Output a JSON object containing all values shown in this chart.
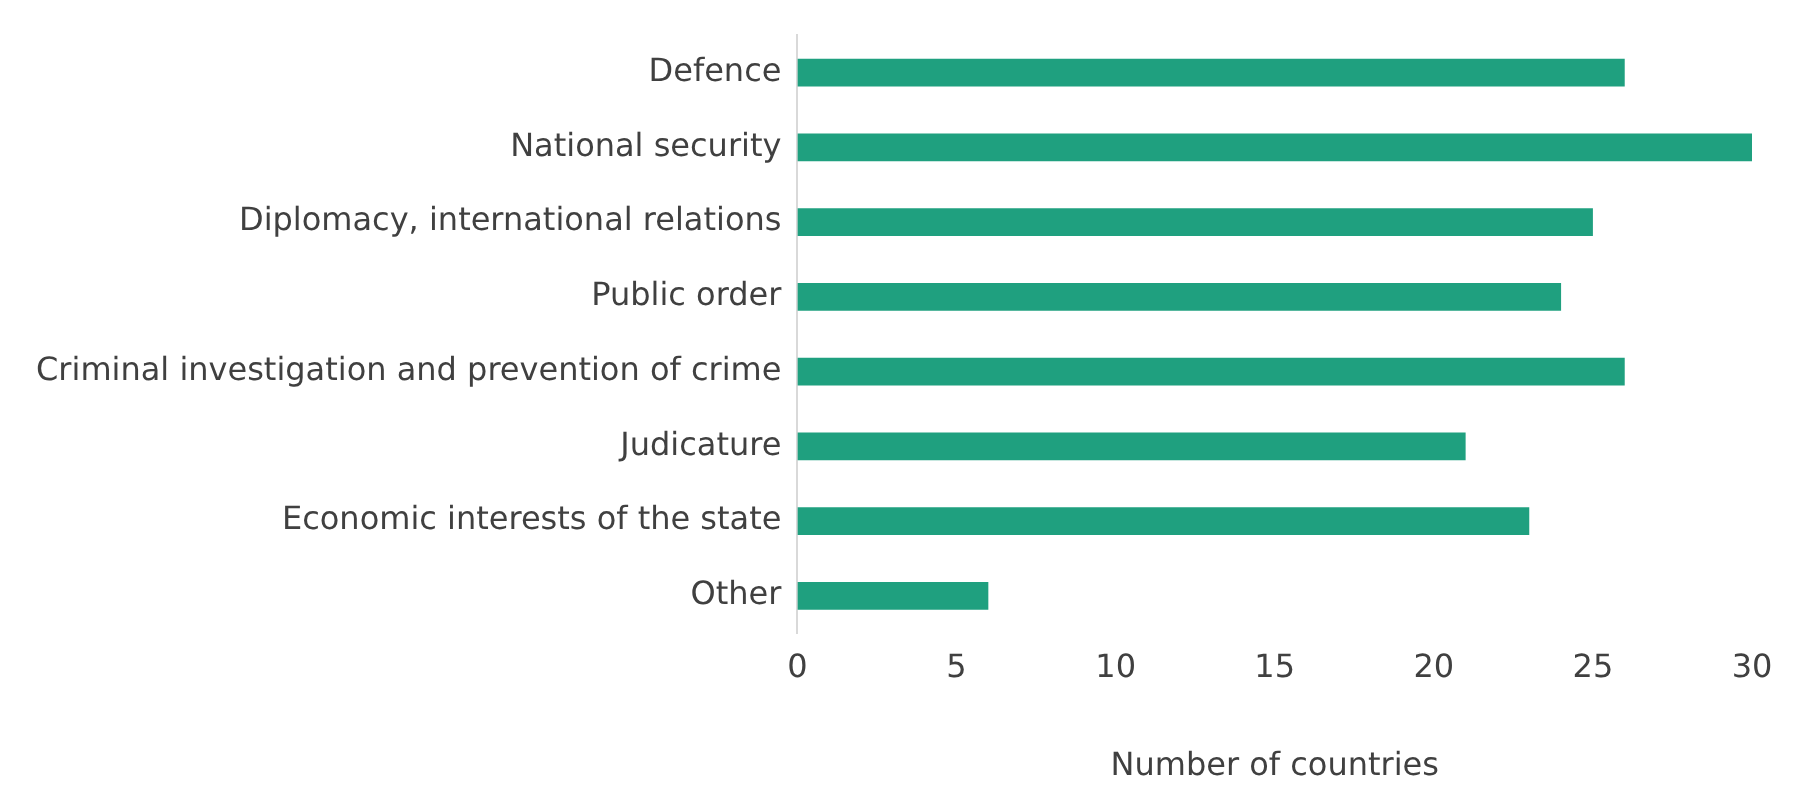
{
  "chart_data": {
    "type": "bar",
    "orientation": "horizontal",
    "xlabel": "Number of countries",
    "categories": [
      "Defence",
      "National security",
      "Diplomacy, international relations",
      "Public order",
      "Criminal investigation and prevention of crime",
      "Judicature",
      "Economic interests of the state",
      "Other"
    ],
    "values": [
      26,
      30,
      25,
      24,
      26,
      21,
      23,
      6
    ],
    "color": "#1fa07f",
    "xlim": [
      0,
      30
    ],
    "xticks": [
      0,
      5,
      10,
      15,
      20,
      25,
      30
    ],
    "grid": false,
    "legend": false
  }
}
